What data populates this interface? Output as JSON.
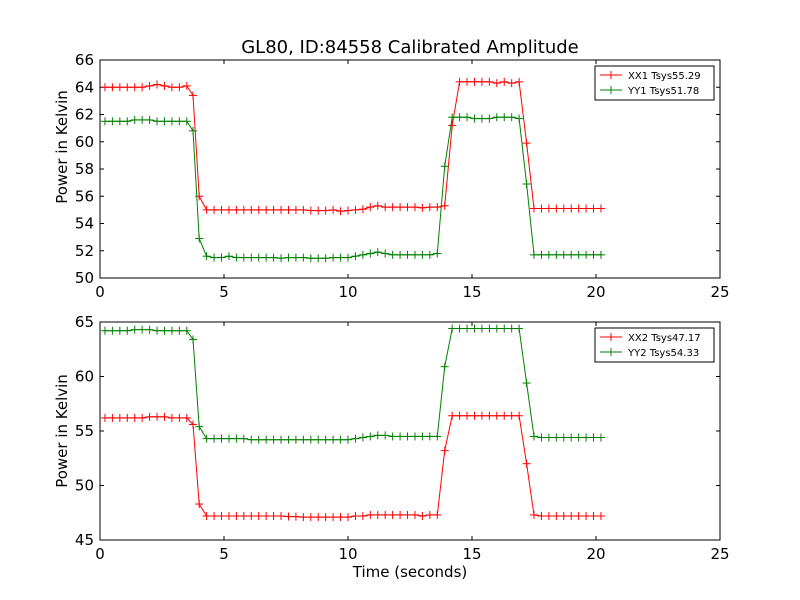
{
  "title": "GL80, ID:84558 Calibrated Amplitude",
  "xlabel": "Time (seconds)",
  "ylabel": "Power in Kelvin",
  "colors": {
    "red": "#ff0000",
    "green": "#008000",
    "axes": "#000000",
    "background": "#ffffff"
  },
  "chart_data": [
    {
      "type": "line",
      "title": "GL80, ID:84558 Calibrated Amplitude",
      "xlabel": "",
      "ylabel": "Power in Kelvin",
      "xlim": [
        0,
        25
      ],
      "ylim": [
        50,
        66
      ],
      "xticks": [
        "0",
        "5",
        "10",
        "15",
        "20",
        "25"
      ],
      "yticks": [
        "50",
        "52",
        "54",
        "56",
        "58",
        "60",
        "62",
        "64",
        "66"
      ],
      "legend_position": "top-right",
      "x": [
        0.2,
        0.5,
        0.8,
        1.1,
        1.4,
        1.7,
        2.0,
        2.3,
        2.6,
        2.9,
        3.2,
        3.5,
        3.75,
        4.0,
        4.3,
        4.6,
        4.9,
        5.2,
        5.5,
        5.8,
        6.1,
        6.4,
        6.7,
        7.0,
        7.3,
        7.6,
        7.9,
        8.2,
        8.5,
        8.8,
        9.1,
        9.4,
        9.7,
        10.0,
        10.3,
        10.6,
        10.9,
        11.2,
        11.5,
        11.8,
        12.1,
        12.4,
        12.7,
        13.0,
        13.3,
        13.6,
        13.9,
        14.2,
        14.5,
        14.8,
        15.1,
        15.4,
        15.7,
        16.0,
        16.3,
        16.6,
        16.9,
        17.2,
        17.5,
        17.8,
        18.1,
        18.4,
        18.7,
        19.0,
        19.3,
        19.6,
        19.9,
        20.2
      ],
      "series": [
        {
          "name": "XX1 Tsys55.29",
          "color": "#ff0000",
          "values": [
            64.0,
            64.0,
            64.0,
            64.0,
            64.0,
            64.0,
            64.1,
            64.2,
            64.1,
            64.0,
            64.0,
            64.1,
            63.4,
            56.0,
            55.0,
            55.0,
            55.0,
            55.0,
            55.0,
            55.0,
            55.0,
            55.0,
            55.0,
            55.0,
            55.0,
            55.0,
            55.0,
            55.0,
            54.95,
            54.95,
            54.95,
            55.0,
            54.9,
            54.95,
            55.0,
            55.05,
            55.2,
            55.3,
            55.2,
            55.2,
            55.2,
            55.2,
            55.2,
            55.15,
            55.2,
            55.2,
            55.3,
            61.2,
            64.4,
            64.4,
            64.4,
            64.4,
            64.4,
            64.3,
            64.4,
            64.3,
            64.4,
            59.9,
            55.1,
            55.1,
            55.1,
            55.1,
            55.1,
            55.1,
            55.1,
            55.1,
            55.1,
            55.1
          ]
        },
        {
          "name": "YY1 Tsys51.78",
          "color": "#008000",
          "values": [
            61.5,
            61.5,
            61.5,
            61.5,
            61.6,
            61.6,
            61.6,
            61.5,
            61.5,
            61.5,
            61.5,
            61.5,
            60.8,
            52.9,
            51.6,
            51.5,
            51.5,
            51.6,
            51.5,
            51.5,
            51.5,
            51.5,
            51.5,
            51.5,
            51.45,
            51.5,
            51.5,
            51.5,
            51.45,
            51.45,
            51.45,
            51.5,
            51.5,
            51.5,
            51.6,
            51.7,
            51.8,
            51.9,
            51.8,
            51.7,
            51.7,
            51.7,
            51.7,
            51.7,
            51.7,
            51.8,
            58.2,
            61.8,
            61.8,
            61.8,
            61.7,
            61.7,
            61.7,
            61.8,
            61.8,
            61.8,
            61.7,
            56.9,
            51.7,
            51.7,
            51.7,
            51.7,
            51.7,
            51.7,
            51.7,
            51.7,
            51.7,
            51.7
          ]
        }
      ]
    },
    {
      "type": "line",
      "title": "",
      "xlabel": "Time (seconds)",
      "ylabel": "Power in Kelvin",
      "xlim": [
        0,
        25
      ],
      "ylim": [
        45,
        65
      ],
      "xticks": [
        "0",
        "5",
        "10",
        "15",
        "20",
        "25"
      ],
      "yticks": [
        "45",
        "50",
        "55",
        "60",
        "65"
      ],
      "legend_position": "top-right",
      "x": [
        0.2,
        0.5,
        0.8,
        1.1,
        1.4,
        1.7,
        2.0,
        2.3,
        2.6,
        2.9,
        3.2,
        3.5,
        3.75,
        4.0,
        4.3,
        4.6,
        4.9,
        5.2,
        5.5,
        5.8,
        6.1,
        6.4,
        6.7,
        7.0,
        7.3,
        7.6,
        7.9,
        8.2,
        8.5,
        8.8,
        9.1,
        9.4,
        9.7,
        10.0,
        10.3,
        10.6,
        10.9,
        11.2,
        11.5,
        11.8,
        12.1,
        12.4,
        12.7,
        13.0,
        13.3,
        13.6,
        13.9,
        14.2,
        14.5,
        14.8,
        15.1,
        15.4,
        15.7,
        16.0,
        16.3,
        16.6,
        16.9,
        17.2,
        17.5,
        17.8,
        18.1,
        18.4,
        18.7,
        19.0,
        19.3,
        19.6,
        19.9,
        20.2
      ],
      "series": [
        {
          "name": "XX2 Tsys47.17",
          "color": "#ff0000",
          "values": [
            56.2,
            56.2,
            56.2,
            56.2,
            56.2,
            56.2,
            56.3,
            56.3,
            56.3,
            56.2,
            56.2,
            56.2,
            55.6,
            48.3,
            47.2,
            47.2,
            47.2,
            47.2,
            47.2,
            47.2,
            47.2,
            47.2,
            47.2,
            47.2,
            47.2,
            47.15,
            47.15,
            47.1,
            47.1,
            47.1,
            47.1,
            47.1,
            47.1,
            47.1,
            47.2,
            47.2,
            47.3,
            47.3,
            47.3,
            47.3,
            47.3,
            47.3,
            47.3,
            47.2,
            47.3,
            47.3,
            53.2,
            56.4,
            56.4,
            56.4,
            56.4,
            56.4,
            56.4,
            56.4,
            56.4,
            56.4,
            56.4,
            52.0,
            47.3,
            47.2,
            47.2,
            47.2,
            47.2,
            47.2,
            47.2,
            47.2,
            47.2,
            47.2
          ]
        },
        {
          "name": "YY2 Tsys54.33",
          "color": "#008000",
          "values": [
            64.2,
            64.2,
            64.2,
            64.2,
            64.3,
            64.3,
            64.3,
            64.2,
            64.2,
            64.2,
            64.2,
            64.2,
            63.4,
            55.4,
            54.3,
            54.3,
            54.3,
            54.3,
            54.3,
            54.3,
            54.2,
            54.2,
            54.2,
            54.2,
            54.2,
            54.2,
            54.2,
            54.2,
            54.2,
            54.2,
            54.2,
            54.2,
            54.2,
            54.2,
            54.3,
            54.4,
            54.5,
            54.6,
            54.6,
            54.5,
            54.5,
            54.5,
            54.5,
            54.5,
            54.5,
            54.5,
            60.9,
            64.4,
            64.4,
            64.4,
            64.4,
            64.4,
            64.4,
            64.4,
            64.4,
            64.4,
            64.4,
            59.4,
            54.5,
            54.4,
            54.4,
            54.4,
            54.4,
            54.4,
            54.4,
            54.4,
            54.4,
            54.4
          ]
        }
      ]
    }
  ]
}
